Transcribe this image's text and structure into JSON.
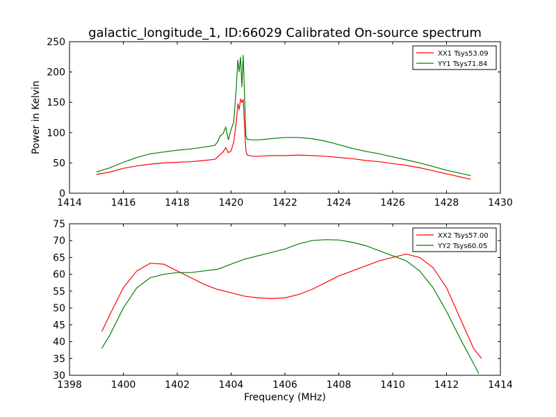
{
  "figure_title": "galactic_longitude_1, ID:66029 Calibrated On-source spectrum",
  "colors": {
    "red": "#ff0000",
    "green": "#008000",
    "axes": "#000000"
  },
  "chart_data": [
    {
      "type": "line",
      "title": "galactic_longitude_1, ID:66029 Calibrated On-source spectrum",
      "xlabel": "",
      "ylabel": "Power in Kelvin",
      "xlim": [
        1414,
        1430
      ],
      "ylim": [
        0,
        250
      ],
      "xticks": [
        "1414",
        "1416",
        "1418",
        "1420",
        "1422",
        "1424",
        "1426",
        "1428",
        "1430"
      ],
      "yticks": [
        "0",
        "50",
        "100",
        "150",
        "200",
        "250"
      ],
      "legend_position": "top-right",
      "grid": false,
      "series": [
        {
          "name": "XX1 Tsys53.09",
          "color": "red",
          "points": [
            [
              1415.0,
              31
            ],
            [
              1415.5,
              35
            ],
            [
              1416.0,
              41
            ],
            [
              1416.5,
              45
            ],
            [
              1417.0,
              48
            ],
            [
              1417.5,
              50
            ],
            [
              1418.0,
              51
            ],
            [
              1418.5,
              52
            ],
            [
              1419.0,
              54
            ],
            [
              1419.4,
              56
            ],
            [
              1419.5,
              60
            ],
            [
              1419.7,
              68
            ],
            [
              1419.8,
              75
            ],
            [
              1419.9,
              67
            ],
            [
              1420.0,
              70
            ],
            [
              1420.1,
              85
            ],
            [
              1420.2,
              120
            ],
            [
              1420.25,
              148
            ],
            [
              1420.3,
              138
            ],
            [
              1420.35,
              155
            ],
            [
              1420.4,
              150
            ],
            [
              1420.45,
              155
            ],
            [
              1420.5,
              110
            ],
            [
              1420.55,
              70
            ],
            [
              1420.6,
              63
            ],
            [
              1420.8,
              61
            ],
            [
              1421.0,
              61
            ],
            [
              1421.5,
              62
            ],
            [
              1422.0,
              62
            ],
            [
              1422.5,
              63
            ],
            [
              1423.0,
              62
            ],
            [
              1423.5,
              61
            ],
            [
              1424.0,
              59
            ],
            [
              1424.5,
              57
            ],
            [
              1425.0,
              54
            ],
            [
              1425.5,
              52
            ],
            [
              1426.0,
              49
            ],
            [
              1426.5,
              46
            ],
            [
              1427.0,
              42
            ],
            [
              1427.5,
              37
            ],
            [
              1428.0,
              32
            ],
            [
              1428.5,
              27
            ],
            [
              1428.9,
              23
            ]
          ]
        },
        {
          "name": "YY1 Tsys71.84",
          "color": "green",
          "points": [
            [
              1415.0,
              35
            ],
            [
              1415.5,
              42
            ],
            [
              1416.0,
              51
            ],
            [
              1416.5,
              59
            ],
            [
              1417.0,
              65
            ],
            [
              1417.5,
              68
            ],
            [
              1418.0,
              71
            ],
            [
              1418.5,
              73
            ],
            [
              1419.0,
              76
            ],
            [
              1419.4,
              79
            ],
            [
              1419.5,
              85
            ],
            [
              1419.6,
              95
            ],
            [
              1419.7,
              98
            ],
            [
              1419.8,
              109
            ],
            [
              1419.9,
              88
            ],
            [
              1420.0,
              105
            ],
            [
              1420.1,
              118
            ],
            [
              1420.2,
              180
            ],
            [
              1420.25,
              220
            ],
            [
              1420.3,
              200
            ],
            [
              1420.35,
              225
            ],
            [
              1420.4,
              175
            ],
            [
              1420.45,
              228
            ],
            [
              1420.5,
              160
            ],
            [
              1420.55,
              95
            ],
            [
              1420.6,
              89
            ],
            [
              1420.8,
              88
            ],
            [
              1421.0,
              88
            ],
            [
              1421.5,
              90
            ],
            [
              1422.0,
              92
            ],
            [
              1422.5,
              92
            ],
            [
              1423.0,
              90
            ],
            [
              1423.5,
              86
            ],
            [
              1424.0,
              80
            ],
            [
              1424.5,
              74
            ],
            [
              1425.0,
              69
            ],
            [
              1425.5,
              65
            ],
            [
              1426.0,
              60
            ],
            [
              1426.5,
              55
            ],
            [
              1427.0,
              50
            ],
            [
              1427.5,
              44
            ],
            [
              1428.0,
              38
            ],
            [
              1428.5,
              33
            ],
            [
              1428.9,
              29
            ]
          ]
        }
      ]
    },
    {
      "type": "line",
      "title": "",
      "xlabel": "Frequency (MHz)",
      "ylabel": "",
      "xlim": [
        1398,
        1414
      ],
      "ylim": [
        30,
        75
      ],
      "xticks": [
        "1398",
        "1400",
        "1402",
        "1404",
        "1406",
        "1408",
        "1410",
        "1412",
        "1414"
      ],
      "yticks": [
        "30",
        "35",
        "40",
        "45",
        "50",
        "55",
        "60",
        "65",
        "70",
        "75"
      ],
      "legend_position": "top-right",
      "grid": false,
      "series": [
        {
          "name": "XX2 Tsys57.00",
          "color": "red",
          "points": [
            [
              1399.2,
              43
            ],
            [
              1399.5,
              48
            ],
            [
              1400.0,
              56
            ],
            [
              1400.5,
              61
            ],
            [
              1401.0,
              63.3
            ],
            [
              1401.5,
              63
            ],
            [
              1402.0,
              61
            ],
            [
              1402.5,
              59
            ],
            [
              1403.0,
              57
            ],
            [
              1403.5,
              55.5
            ],
            [
              1404.0,
              54.5
            ],
            [
              1404.5,
              53.5
            ],
            [
              1405.0,
              53
            ],
            [
              1405.5,
              52.8
            ],
            [
              1406.0,
              53
            ],
            [
              1406.5,
              54
            ],
            [
              1407.0,
              55.5
            ],
            [
              1407.5,
              57.5
            ],
            [
              1408.0,
              59.5
            ],
            [
              1408.5,
              61
            ],
            [
              1409.0,
              62.5
            ],
            [
              1409.5,
              64
            ],
            [
              1410.0,
              65
            ],
            [
              1410.5,
              66
            ],
            [
              1411.0,
              65
            ],
            [
              1411.5,
              62
            ],
            [
              1412.0,
              56
            ],
            [
              1412.5,
              47
            ],
            [
              1413.0,
              38
            ],
            [
              1413.3,
              35
            ]
          ]
        },
        {
          "name": "YY2 Tsys60.05",
          "color": "green",
          "points": [
            [
              1399.2,
              38
            ],
            [
              1399.5,
              42
            ],
            [
              1400.0,
              50
            ],
            [
              1400.5,
              56
            ],
            [
              1401.0,
              59
            ],
            [
              1401.5,
              60
            ],
            [
              1402.0,
              60.5
            ],
            [
              1402.5,
              60.5
            ],
            [
              1403.0,
              61
            ],
            [
              1403.5,
              61.5
            ],
            [
              1404.0,
              63
            ],
            [
              1404.5,
              64.5
            ],
            [
              1405.0,
              65.5
            ],
            [
              1405.5,
              66.5
            ],
            [
              1406.0,
              67.5
            ],
            [
              1406.5,
              69
            ],
            [
              1407.0,
              70
            ],
            [
              1407.5,
              70.3
            ],
            [
              1408.0,
              70.2
            ],
            [
              1408.5,
              69.5
            ],
            [
              1409.0,
              68.5
            ],
            [
              1409.5,
              67
            ],
            [
              1410.0,
              65.5
            ],
            [
              1410.5,
              64
            ],
            [
              1411.0,
              61
            ],
            [
              1411.5,
              56
            ],
            [
              1412.0,
              49
            ],
            [
              1412.5,
              41
            ],
            [
              1413.0,
              33.5
            ],
            [
              1413.2,
              30.5
            ]
          ]
        }
      ]
    }
  ]
}
